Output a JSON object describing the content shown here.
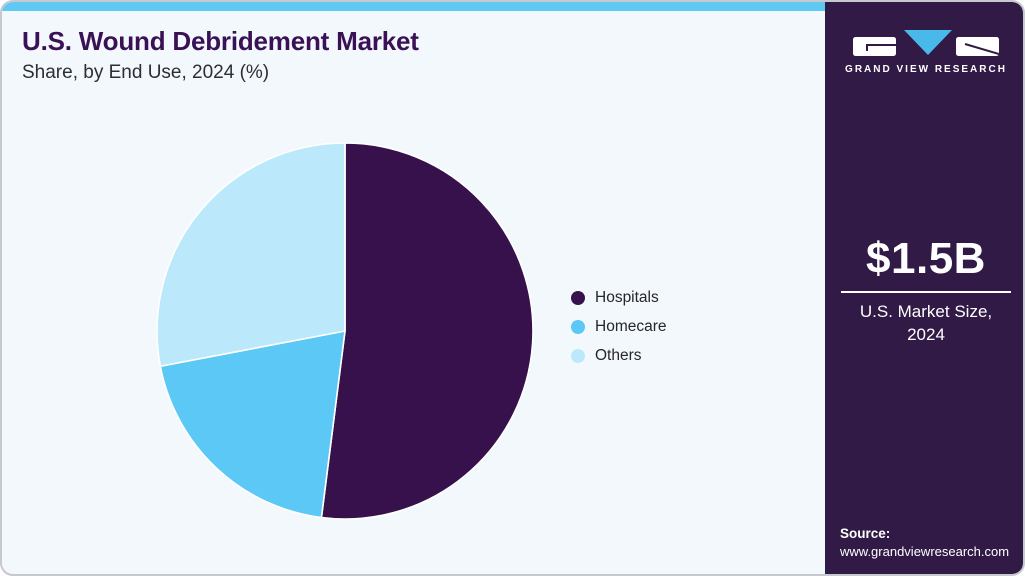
{
  "header": {
    "title": "U.S. Wound Debridement Market",
    "subtitle": "Share, by End Use, 2024 (%)",
    "title_color": "#3a1154"
  },
  "chart_data": {
    "type": "pie",
    "title": "U.S. Wound Debridement Market Share, by End Use, 2024 (%)",
    "unit": "%",
    "start_angle_deg": 0,
    "direction": "clockwise",
    "legend_position": "right",
    "slices": [
      {
        "label": "Hospitals",
        "value": 52,
        "color": "#36114b"
      },
      {
        "label": "Homecare",
        "value": 20,
        "color": "#5bc8f5"
      },
      {
        "label": "Others",
        "value": 28,
        "color": "#bce8fb"
      }
    ],
    "slice_separator_color": "#ffffff"
  },
  "brand": {
    "name": "GRAND VIEW RESEARCH",
    "triangle_color": "#49b9e9",
    "panel_color": "#311a46",
    "accent_bar_color": "#5ec9f2"
  },
  "stat": {
    "value": "$1.5B",
    "label_line1": "U.S. Market Size,",
    "label_line2": "2024"
  },
  "source": {
    "label": "Source:",
    "url": "www.grandviewresearch.com"
  }
}
